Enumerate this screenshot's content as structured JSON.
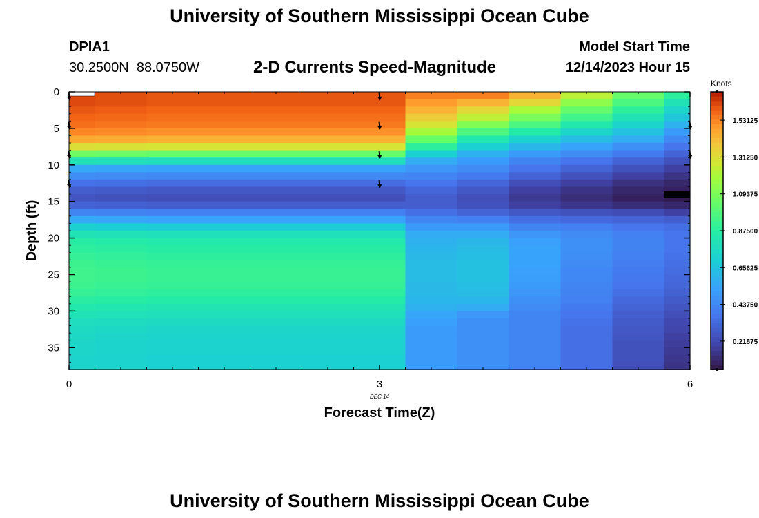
{
  "page": {
    "title": "University of Southern Mississippi Ocean Cube",
    "footer_title": "University of Southern Mississippi Ocean Cube"
  },
  "header": {
    "station_id": "DPIA1",
    "coordinates": "30.2500N  88.0750W",
    "model_start_label": "Model Start Time",
    "model_start_value": "12/14/2023 Hour 15"
  },
  "chart_data": {
    "type": "heatmap",
    "title": "2-D Currents Speed-Magnitude",
    "xlabel": "Forecast Time(Z)",
    "ylabel": "Depth (ft)",
    "x_ticks": [
      "0",
      "3",
      "6"
    ],
    "x_range": [
      0,
      6
    ],
    "x_sublabel": "DEC 14",
    "y_ticks": [
      "0",
      "5",
      "10",
      "15",
      "20",
      "25",
      "30",
      "35"
    ],
    "y_range": [
      0,
      38
    ],
    "y_inverted": true,
    "columns_x": [
      0,
      0.25,
      0.75,
      1.25,
      1.75,
      2.25,
      2.75,
      3.25,
      3.75,
      4.25,
      4.75,
      5.25,
      5.75
    ],
    "rows_depth": [
      0,
      1,
      2,
      3,
      4,
      5,
      6,
      7,
      8,
      9,
      10,
      11,
      12,
      13,
      14,
      15,
      16,
      17,
      18,
      19,
      20,
      21,
      22,
      23,
      24,
      25,
      26,
      27,
      28,
      29,
      30,
      31,
      32,
      33,
      34,
      35,
      36,
      37
    ],
    "colorbar": {
      "label": "Knots",
      "tick_labels": [
        "1.53125",
        "1.31250",
        "1.09375",
        "0.87500",
        "0.65625",
        "0.43750",
        "0.21875"
      ],
      "tick_values": [
        1.53125,
        1.3125,
        1.09375,
        0.875,
        0.65625,
        0.4375,
        0.21875
      ],
      "range": [
        0.05,
        1.7
      ]
    },
    "vectors": [
      {
        "x": 0,
        "depth": 0.5
      },
      {
        "x": 0,
        "depth": 4.5
      },
      {
        "x": 0,
        "depth": 8.5
      },
      {
        "x": 0,
        "depth": 12.5
      },
      {
        "x": 3,
        "depth": 0.5
      },
      {
        "x": 3,
        "depth": 4.5
      },
      {
        "x": 3,
        "depth": 8.5
      },
      {
        "x": 3,
        "depth": 12.5
      },
      {
        "x": 6,
        "depth": 4.5
      },
      {
        "x": 6,
        "depth": 8.5
      }
    ],
    "surface_speed_profile_note": "speed by depth per column",
    "speed_profiles": {
      "early": [
        1.62,
        1.62,
        1.6,
        1.58,
        1.56,
        1.52,
        1.45,
        1.3,
        1.05,
        0.8,
        0.55,
        0.45,
        0.35,
        0.28,
        0.25,
        0.3,
        0.42,
        0.55,
        0.7,
        0.8,
        0.86,
        0.88,
        0.9,
        0.92,
        0.93,
        0.93,
        0.92,
        0.9,
        0.87,
        0.83,
        0.8,
        0.77,
        0.75,
        0.74,
        0.73,
        0.73,
        0.72,
        0.72
      ],
      "col7": [
        1.55,
        1.5,
        1.45,
        1.38,
        1.3,
        1.2,
        1.05,
        0.9,
        0.72,
        0.58,
        0.5,
        0.44,
        0.38,
        0.33,
        0.3,
        0.3,
        0.36,
        0.44,
        0.52,
        0.58,
        0.6,
        0.62,
        0.63,
        0.64,
        0.64,
        0.64,
        0.63,
        0.63,
        0.62,
        0.6,
        0.56,
        0.54,
        0.52,
        0.52,
        0.52,
        0.52,
        0.52,
        0.52
      ],
      "col8": [
        1.55,
        1.45,
        1.35,
        1.25,
        1.12,
        0.98,
        0.85,
        0.72,
        0.6,
        0.52,
        0.46,
        0.4,
        0.33,
        0.28,
        0.25,
        0.26,
        0.32,
        0.42,
        0.52,
        0.58,
        0.62,
        0.64,
        0.65,
        0.66,
        0.66,
        0.66,
        0.65,
        0.64,
        0.62,
        0.58,
        0.5,
        0.48,
        0.48,
        0.48,
        0.48,
        0.48,
        0.48,
        0.48
      ],
      "col9": [
        1.45,
        1.35,
        1.22,
        1.1,
        0.98,
        0.86,
        0.74,
        0.62,
        0.52,
        0.44,
        0.38,
        0.32,
        0.25,
        0.2,
        0.18,
        0.2,
        0.28,
        0.36,
        0.44,
        0.5,
        0.54,
        0.55,
        0.55,
        0.55,
        0.54,
        0.53,
        0.52,
        0.5,
        0.48,
        0.46,
        0.44,
        0.44,
        0.44,
        0.44,
        0.44,
        0.44,
        0.44,
        0.44
      ],
      "col10": [
        1.25,
        1.15,
        1.05,
        0.95,
        0.85,
        0.75,
        0.64,
        0.55,
        0.46,
        0.38,
        0.32,
        0.26,
        0.2,
        0.16,
        0.14,
        0.17,
        0.26,
        0.34,
        0.42,
        0.46,
        0.48,
        0.48,
        0.47,
        0.46,
        0.45,
        0.45,
        0.44,
        0.43,
        0.42,
        0.4,
        0.38,
        0.37,
        0.36,
        0.36,
        0.36,
        0.36,
        0.36,
        0.36
      ],
      "col11": [
        1.05,
        0.98,
        0.9,
        0.82,
        0.74,
        0.66,
        0.58,
        0.48,
        0.4,
        0.32,
        0.26,
        0.2,
        0.15,
        0.12,
        0.1,
        0.14,
        0.24,
        0.32,
        0.38,
        0.42,
        0.43,
        0.43,
        0.42,
        0.41,
        0.4,
        0.39,
        0.38,
        0.36,
        0.34,
        0.32,
        0.3,
        0.29,
        0.28,
        0.27,
        0.26,
        0.26,
        0.26,
        0.25
      ],
      "col12": [
        0.9,
        0.82,
        0.75,
        0.68,
        0.6,
        0.52,
        0.45,
        0.38,
        0.32,
        0.26,
        0.2,
        0.16,
        0.12,
        0.1,
        0.08,
        0.12,
        0.2,
        0.3,
        0.36,
        0.38,
        0.38,
        0.38,
        0.37,
        0.36,
        0.35,
        0.34,
        0.33,
        0.31,
        0.29,
        0.27,
        0.25,
        0.23,
        0.22,
        0.2,
        0.19,
        0.18,
        0.17,
        0.16
      ]
    }
  }
}
